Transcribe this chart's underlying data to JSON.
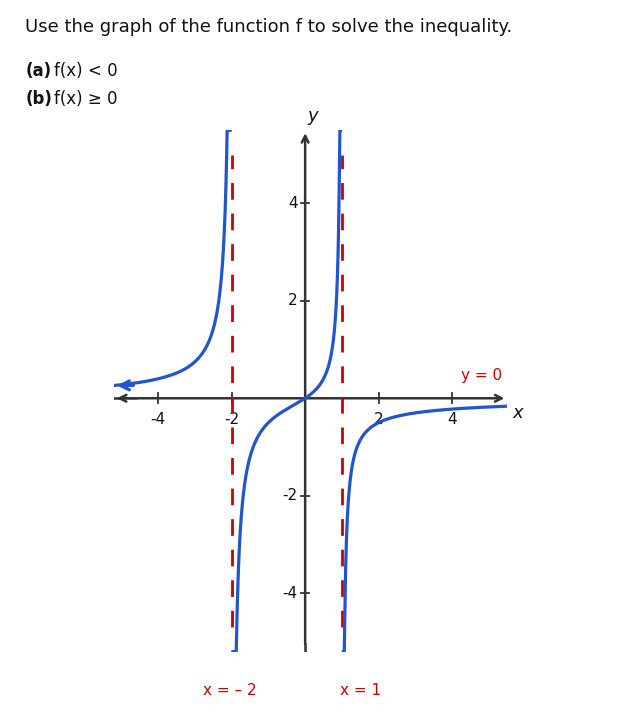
{
  "title": "Use the graph of the function f to solve the inequality.",
  "part_a": "(a) f(x) < 0",
  "part_b": "(b) f(x) ≥ 0",
  "xlabel": "x",
  "ylabel": "y",
  "xlim": [
    -5.2,
    5.5
  ],
  "ylim": [
    -5.2,
    5.5
  ],
  "xticks": [
    -4,
    -2,
    2,
    4
  ],
  "yticks": [
    -4,
    -2,
    2,
    4
  ],
  "asymptote_x1": -2,
  "asymptote_x2": 1,
  "asymptote_color": "#cc0000",
  "curve_color": "#2255cc",
  "axis_color": "#333333",
  "text_color_red": "#cc0000",
  "text_color_black": "#111111",
  "background_color": "#ffffff",
  "label_x1": "x = – 2",
  "label_x2": "x = 1",
  "label_y": "y = 0",
  "figsize": [
    6.34,
    7.24
  ],
  "dpi": 100
}
